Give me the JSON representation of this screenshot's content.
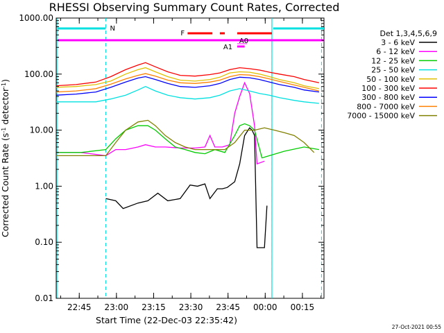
{
  "chart_data": {
    "type": "line",
    "title": "RHESSI Observing Summary Count Rates, Corrected",
    "xlabel": "Start Time (22-Dec-03 22:35:42)",
    "ylabel_parts": [
      "Corrected Count Rate (s",
      "-1",
      " detector",
      "-1",
      ")"
    ],
    "ylabel": "Corrected Count Rate (s-1 detector-1)",
    "yscale": "log",
    "ylim": [
      0.01,
      1000
    ],
    "yticks": [
      {
        "value": 0.01,
        "label": "0.01"
      },
      {
        "value": 0.1,
        "label": "0.10"
      },
      {
        "value": 1,
        "label": "1.00"
      },
      {
        "value": 10,
        "label": "10.00"
      },
      {
        "value": 100,
        "label": "100.00"
      },
      {
        "value": 1000,
        "label": "1000.00"
      }
    ],
    "xlim_minutes": [
      0,
      108
    ],
    "xticks": [
      {
        "minutes": 9.3,
        "label": "22:45"
      },
      {
        "minutes": 24.3,
        "label": "23:00"
      },
      {
        "minutes": 39.3,
        "label": "23:15"
      },
      {
        "minutes": 54.3,
        "label": "23:30"
      },
      {
        "minutes": 69.3,
        "label": "23:45"
      },
      {
        "minutes": 84.3,
        "label": "00:00"
      },
      {
        "minutes": 99.3,
        "label": "00:15"
      }
    ],
    "legend_title": "Det 1,3,4,5,6,9",
    "legend_position": "right",
    "series": [
      {
        "name": "3 - 6 keV",
        "color": "#000000",
        "points": [
          [
            20,
            0.6
          ],
          [
            24,
            0.55
          ],
          [
            27,
            0.4
          ],
          [
            33,
            0.5
          ],
          [
            37,
            0.55
          ],
          [
            41,
            0.75
          ],
          [
            45,
            0.55
          ],
          [
            50,
            0.6
          ],
          [
            54,
            1.05
          ],
          [
            57,
            1.0
          ],
          [
            60,
            1.1
          ],
          [
            62,
            0.6
          ],
          [
            65,
            0.9
          ],
          [
            67,
            0.9
          ],
          [
            69,
            0.95
          ],
          [
            72,
            1.2
          ],
          [
            74,
            2.5
          ],
          [
            76,
            8.0
          ],
          [
            78,
            11.0
          ],
          [
            79,
            10.0
          ],
          [
            80,
            8.0
          ],
          [
            81,
            0.08
          ],
          [
            84,
            0.08
          ],
          [
            85,
            0.45
          ]
        ]
      },
      {
        "name": "6 - 12 keV",
        "color": "#ff00ff",
        "points": [
          [
            0,
            4.0
          ],
          [
            10,
            4.0
          ],
          [
            20,
            3.5
          ],
          [
            24,
            4.5
          ],
          [
            28,
            4.5
          ],
          [
            33,
            5.0
          ],
          [
            36,
            5.5
          ],
          [
            40,
            5.0
          ],
          [
            44,
            5.0
          ],
          [
            50,
            4.8
          ],
          [
            56,
            4.8
          ],
          [
            60,
            5.0
          ],
          [
            62,
            8.0
          ],
          [
            64,
            5.0
          ],
          [
            67,
            5.0
          ],
          [
            70,
            5.5
          ],
          [
            72,
            20
          ],
          [
            74,
            40
          ],
          [
            76,
            70
          ],
          [
            78,
            45
          ],
          [
            80,
            12
          ],
          [
            81,
            2.5
          ],
          [
            84,
            2.8
          ]
        ]
      },
      {
        "name": "12 - 25 keV",
        "color": "#00cc00",
        "points": [
          [
            0,
            4.0
          ],
          [
            10,
            4.0
          ],
          [
            20,
            4.5
          ],
          [
            24,
            7
          ],
          [
            28,
            10
          ],
          [
            33,
            12
          ],
          [
            37,
            12
          ],
          [
            40,
            10
          ],
          [
            44,
            7
          ],
          [
            48,
            5
          ],
          [
            52,
            4.5
          ],
          [
            56,
            4
          ],
          [
            60,
            3.8
          ],
          [
            64,
            4.5
          ],
          [
            68,
            4
          ],
          [
            72,
            8
          ],
          [
            74,
            12
          ],
          [
            76,
            13
          ],
          [
            78,
            12
          ],
          [
            80,
            10
          ],
          [
            83,
            3.2
          ],
          [
            92,
            4.2
          ],
          [
            100,
            5
          ],
          [
            106,
            4.5
          ]
        ]
      },
      {
        "name": "25 - 50 keV",
        "color": "#00e0e0",
        "points": [
          [
            0,
            32
          ],
          [
            8,
            32
          ],
          [
            16,
            32
          ],
          [
            22,
            36
          ],
          [
            28,
            42
          ],
          [
            33,
            52
          ],
          [
            36,
            60
          ],
          [
            40,
            50
          ],
          [
            45,
            42
          ],
          [
            50,
            38
          ],
          [
            56,
            36
          ],
          [
            62,
            38
          ],
          [
            66,
            42
          ],
          [
            70,
            50
          ],
          [
            74,
            55
          ],
          [
            78,
            50
          ],
          [
            82,
            45
          ],
          [
            86,
            42
          ],
          [
            90,
            38
          ],
          [
            96,
            34
          ],
          [
            100,
            32
          ],
          [
            106,
            30
          ]
        ]
      },
      {
        "name": "50 - 100 keV",
        "color": "#e0c000",
        "points": [
          [
            0,
            58
          ],
          [
            8,
            60
          ],
          [
            16,
            65
          ],
          [
            22,
            75
          ],
          [
            28,
            100
          ],
          [
            33,
            120
          ],
          [
            36,
            130
          ],
          [
            40,
            110
          ],
          [
            45,
            90
          ],
          [
            50,
            78
          ],
          [
            56,
            75
          ],
          [
            62,
            80
          ],
          [
            66,
            88
          ],
          [
            70,
            105
          ],
          [
            74,
            110
          ],
          [
            78,
            108
          ],
          [
            82,
            100
          ],
          [
            86,
            90
          ],
          [
            90,
            80
          ],
          [
            96,
            70
          ],
          [
            100,
            62
          ],
          [
            106,
            55
          ]
        ]
      },
      {
        "name": "100 - 300 keV",
        "color": "#ff0000",
        "points": [
          [
            0,
            62
          ],
          [
            8,
            65
          ],
          [
            16,
            72
          ],
          [
            22,
            90
          ],
          [
            28,
            120
          ],
          [
            33,
            145
          ],
          [
            36,
            160
          ],
          [
            40,
            135
          ],
          [
            45,
            110
          ],
          [
            50,
            95
          ],
          [
            56,
            92
          ],
          [
            62,
            98
          ],
          [
            66,
            105
          ],
          [
            70,
            120
          ],
          [
            74,
            130
          ],
          [
            78,
            125
          ],
          [
            82,
            118
          ],
          [
            86,
            108
          ],
          [
            90,
            100
          ],
          [
            96,
            90
          ],
          [
            100,
            80
          ],
          [
            106,
            70
          ]
        ]
      },
      {
        "name": "300 - 800 keV",
        "color": "#0000ff",
        "points": [
          [
            0,
            42
          ],
          [
            8,
            44
          ],
          [
            16,
            48
          ],
          [
            22,
            58
          ],
          [
            28,
            72
          ],
          [
            33,
            85
          ],
          [
            36,
            90
          ],
          [
            40,
            80
          ],
          [
            45,
            68
          ],
          [
            50,
            60
          ],
          [
            56,
            58
          ],
          [
            62,
            62
          ],
          [
            66,
            68
          ],
          [
            70,
            80
          ],
          [
            74,
            88
          ],
          [
            78,
            86
          ],
          [
            82,
            80
          ],
          [
            86,
            72
          ],
          [
            90,
            65
          ],
          [
            96,
            58
          ],
          [
            100,
            52
          ],
          [
            106,
            48
          ]
        ]
      },
      {
        "name": "800 - 7000 keV",
        "color": "#ff8000",
        "points": [
          [
            0,
            48
          ],
          [
            8,
            50
          ],
          [
            16,
            55
          ],
          [
            22,
            66
          ],
          [
            28,
            82
          ],
          [
            33,
            95
          ],
          [
            36,
            102
          ],
          [
            40,
            92
          ],
          [
            45,
            78
          ],
          [
            50,
            70
          ],
          [
            56,
            68
          ],
          [
            62,
            72
          ],
          [
            66,
            78
          ],
          [
            70,
            90
          ],
          [
            74,
            98
          ],
          [
            78,
            96
          ],
          [
            82,
            90
          ],
          [
            86,
            82
          ],
          [
            90,
            74
          ],
          [
            96,
            64
          ],
          [
            100,
            58
          ],
          [
            106,
            50
          ]
        ]
      },
      {
        "name": "7000 - 15000 keV",
        "color": "#808000",
        "points": [
          [
            0,
            3.5
          ],
          [
            8,
            3.5
          ],
          [
            16,
            3.5
          ],
          [
            20,
            3.5
          ],
          [
            24,
            6
          ],
          [
            28,
            10
          ],
          [
            33,
            14
          ],
          [
            37,
            15
          ],
          [
            40,
            12
          ],
          [
            44,
            8
          ],
          [
            48,
            6
          ],
          [
            52,
            5
          ],
          [
            56,
            4.5
          ],
          [
            60,
            4.5
          ],
          [
            64,
            4.5
          ],
          [
            68,
            4.5
          ],
          [
            72,
            6
          ],
          [
            76,
            10
          ],
          [
            80,
            10
          ],
          [
            84,
            11
          ],
          [
            88,
            10
          ],
          [
            92,
            9
          ],
          [
            96,
            8
          ],
          [
            100,
            6
          ],
          [
            104,
            4
          ]
        ]
      }
    ],
    "annotations": {
      "F_label": "F",
      "N_label": "N",
      "A0_label": "A0",
      "A1_label": "A1",
      "N_segments_minutes": [
        [
          0,
          20
        ],
        [
          87,
          108
        ]
      ],
      "F_segments_minutes": [
        [
          53,
          63
        ],
        [
          66,
          68
        ],
        [
          73,
          87
        ]
      ],
      "A0_segment_minutes": [
        73,
        77
      ],
      "A1_segment_minutes": [
        73,
        76
      ],
      "day_line_minutes": [
        0,
        108
      ],
      "dashed_lines_minutes": [
        20,
        87,
        107
      ],
      "solid_lines_minutes": [
        0,
        87
      ]
    },
    "timestamp": "27-Oct-2021 00:55"
  }
}
